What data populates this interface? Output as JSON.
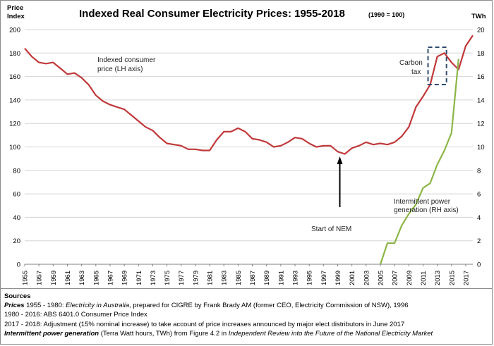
{
  "chart_data": {
    "type": "line",
    "title": "Indexed Real Consumer Electricity Prices: 1955-2018",
    "subtitle": "(1990 = 100)",
    "ylabel_left": "Price Index",
    "ylabel_right": "TWh",
    "ylim_left": [
      0,
      200
    ],
    "ylim_right": [
      0,
      20
    ],
    "yticks_left": [
      0,
      20,
      40,
      60,
      80,
      100,
      120,
      140,
      160,
      180,
      200
    ],
    "yticks_right": [
      0,
      2,
      4,
      6,
      8,
      10,
      12,
      14,
      16,
      18,
      20
    ],
    "x_ticks": [
      "1955",
      "1957",
      "1959",
      "1961",
      "1963",
      "1965",
      "1967",
      "1969",
      "1971",
      "1973",
      "1975",
      "1977",
      "1979",
      "1981",
      "1983",
      "1985",
      "1987",
      "1989",
      "1991",
      "1993",
      "1995",
      "1997",
      "1999",
      "2001",
      "2003",
      "2005",
      "2007",
      "2009",
      "2011",
      "2013",
      "2015",
      "2017"
    ],
    "grid": "horizontal",
    "legend": "none",
    "series": [
      {
        "name": "Indexed consumer price (LH axis)",
        "axis": "left",
        "color": "#c0393b",
        "x": [
          1955,
          1956,
          1957,
          1958,
          1959,
          1960,
          1961,
          1962,
          1963,
          1964,
          1965,
          1966,
          1967,
          1968,
          1969,
          1970,
          1971,
          1972,
          1973,
          1974,
          1975,
          1976,
          1977,
          1978,
          1979,
          1980,
          1981,
          1982,
          1983,
          1984,
          1985,
          1986,
          1987,
          1988,
          1989,
          1990,
          1991,
          1992,
          1993,
          1994,
          1995,
          1996,
          1997,
          1998,
          1999,
          2000,
          2001,
          2002,
          2003,
          2004,
          2005,
          2006,
          2007,
          2008,
          2009,
          2010,
          2011,
          2012,
          2013,
          2014,
          2015,
          2016,
          2017,
          2018
        ],
        "values": [
          184,
          177,
          172,
          171,
          172,
          167,
          162,
          163,
          159,
          153,
          144,
          139,
          136,
          134,
          132,
          127,
          122,
          117,
          114,
          108,
          103,
          102,
          101,
          98,
          98,
          97,
          97,
          106,
          113,
          113,
          116,
          113,
          107,
          106,
          104,
          100,
          101,
          104,
          108,
          107,
          103,
          100,
          101,
          101,
          96,
          94,
          99,
          101,
          104,
          102,
          103,
          102,
          104,
          109,
          117,
          134,
          143,
          153,
          177,
          180,
          172,
          166,
          186,
          195
        ]
      },
      {
        "name": "Intermittent power generation (RH axis)",
        "axis": "right",
        "color": "#8cb648",
        "x": [
          2005,
          2006,
          2007,
          2008,
          2009,
          2010,
          2011,
          2012,
          2013,
          2014,
          2015,
          2016
        ],
        "values": [
          0,
          1.8,
          1.8,
          3.3,
          4.3,
          5.1,
          6.5,
          6.9,
          8.5,
          9.7,
          11.2,
          17.5
        ]
      }
    ],
    "annotations": {
      "price_label_line1": "Indexed consumer",
      "price_label_line2": "price (LH axis)",
      "carbon_line1": "Carbon",
      "carbon_line2": "tax",
      "nem_label": "Start of NEM",
      "nem_year": 1999,
      "carbon_years": [
        2012,
        2014
      ],
      "intermittent_line1": "Intermittent power",
      "intermittent_line2": "generation (RH axis)"
    }
  },
  "sources": {
    "heading": "Sources",
    "line1_bold": "Prices",
    "line1_a": " 1955 - 1980: ",
    "line1_italic": "Electricity in Australia",
    "line1_b": ", prepared for CIGRE by Frank Brady AM (former CEO, Electricity Commission of NSW), 1996",
    "line2": "1980 - 2016: ABS 6401.0 Consumer Price Index",
    "line3": "2017 - 2018: Adjustment (15% nominal increase) to take account of price increases announced by major elect distributors in June 2017",
    "line4_bold": "Intermittent power generation",
    "line4_a": " (Terra Watt hours, TWh) from Figure 4.2 in ",
    "line4_italic": "Independent Review into the Future of the National Electricity Market"
  }
}
